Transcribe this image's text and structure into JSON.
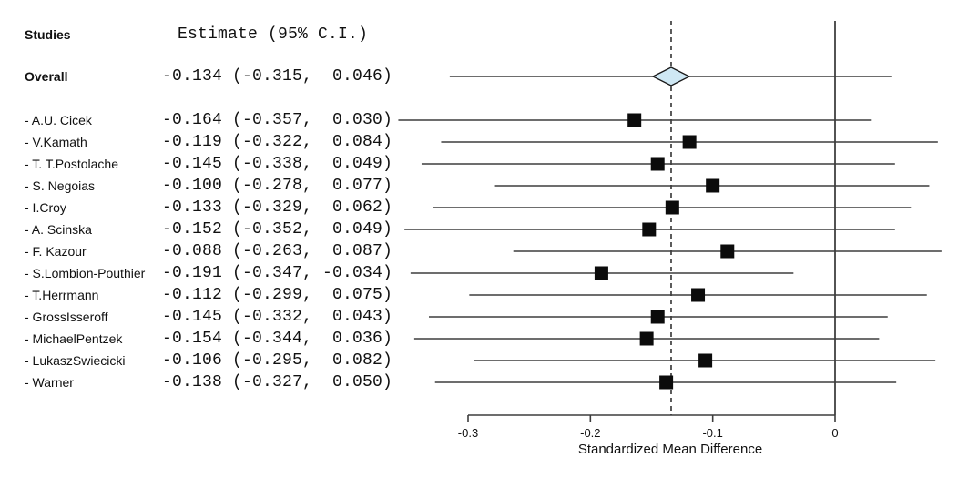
{
  "header": {
    "studies_label": "Studies",
    "estimate_header": "Estimate (95% C.I.)"
  },
  "chart_data": {
    "type": "scatter",
    "variant": "forest_plot",
    "xlabel": "Standardized Mean Difference",
    "x_axis": {
      "min": -0.3,
      "max": 0,
      "ticks": [
        -0.3,
        -0.2,
        -0.1,
        0
      ],
      "tick_labels": [
        "-0.3",
        "-0.2",
        "-0.1",
        "0"
      ]
    },
    "reference_line_x": 0,
    "pooled_dashed_line_x": -0.134,
    "overall": {
      "label": "Overall",
      "estimate": -0.134,
      "ci_low": -0.315,
      "ci_high": 0.046,
      "estimate_text": "-0.134 (-0.315,  0.046)"
    },
    "studies": [
      {
        "label": "- A.U. Cicek",
        "estimate": -0.164,
        "ci_low": -0.357,
        "ci_high": 0.03,
        "estimate_text": "-0.164 (-0.357,  0.030)"
      },
      {
        "label": "- V.Kamath",
        "estimate": -0.119,
        "ci_low": -0.322,
        "ci_high": 0.084,
        "estimate_text": "-0.119 (-0.322,  0.084)"
      },
      {
        "label": "- T. T.Postolache",
        "estimate": -0.145,
        "ci_low": -0.338,
        "ci_high": 0.049,
        "estimate_text": "-0.145 (-0.338,  0.049)"
      },
      {
        "label": "- S. Negoias",
        "estimate": -0.1,
        "ci_low": -0.278,
        "ci_high": 0.077,
        "estimate_text": "-0.100 (-0.278,  0.077)"
      },
      {
        "label": "- I.Croy",
        "estimate": -0.133,
        "ci_low": -0.329,
        "ci_high": 0.062,
        "estimate_text": "-0.133 (-0.329,  0.062)"
      },
      {
        "label": "- A. Scinska",
        "estimate": -0.152,
        "ci_low": -0.352,
        "ci_high": 0.049,
        "estimate_text": "-0.152 (-0.352,  0.049)"
      },
      {
        "label": "- F. Kazour",
        "estimate": -0.088,
        "ci_low": -0.263,
        "ci_high": 0.087,
        "estimate_text": "-0.088 (-0.263,  0.087)"
      },
      {
        "label": "- S.Lombion-Pouthier",
        "estimate": -0.191,
        "ci_low": -0.347,
        "ci_high": -0.034,
        "estimate_text": "-0.191 (-0.347, -0.034)"
      },
      {
        "label": "- T.Herrmann",
        "estimate": -0.112,
        "ci_low": -0.299,
        "ci_high": 0.075,
        "estimate_text": "-0.112 (-0.299,  0.075)"
      },
      {
        "label": "- GrossIsseroff",
        "estimate": -0.145,
        "ci_low": -0.332,
        "ci_high": 0.043,
        "estimate_text": "-0.145 (-0.332,  0.043)"
      },
      {
        "label": "- MichaelPentzek",
        "estimate": -0.154,
        "ci_low": -0.344,
        "ci_high": 0.036,
        "estimate_text": "-0.154 (-0.344,  0.036)"
      },
      {
        "label": "- LukaszSwiecicki",
        "estimate": -0.106,
        "ci_low": -0.295,
        "ci_high": 0.082,
        "estimate_text": "-0.106 (-0.295,  0.082)"
      },
      {
        "label": "- Warner",
        "estimate": -0.138,
        "ci_low": -0.327,
        "ci_high": 0.05,
        "estimate_text": "-0.138 (-0.327,  0.050)"
      }
    ],
    "colors": {
      "diamond_fill": "#cfe8f4",
      "diamond_stroke": "#1a1a1a",
      "square_fill": "#0b0b0b",
      "ci_line": "#3d3d3d",
      "axis_line": "#3d3d3d",
      "reference_line": "#1a1a1a",
      "dashed_line": "#333333",
      "text": "#111111"
    }
  }
}
